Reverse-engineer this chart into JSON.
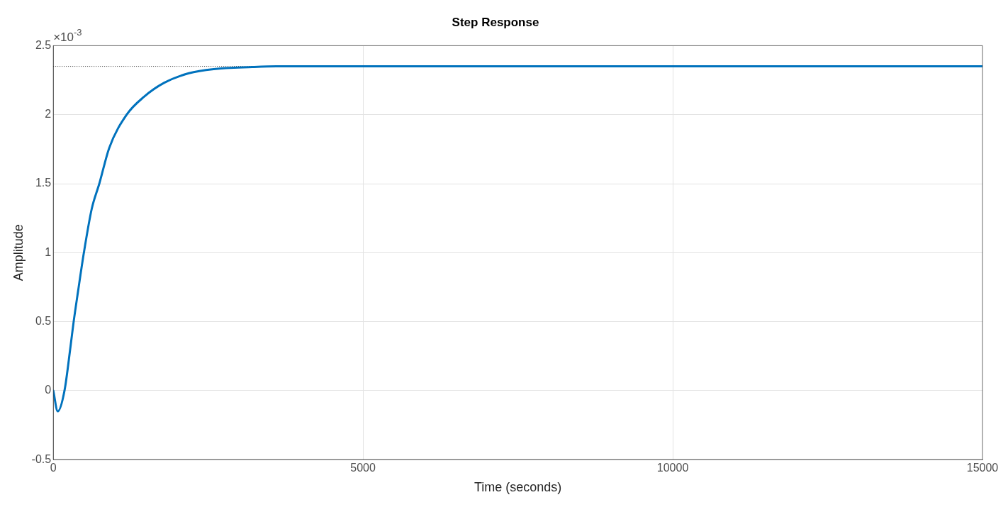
{
  "chart_data": {
    "type": "line",
    "title": "Step Response",
    "xlabel": "Time (seconds)",
    "ylabel": "Amplitude",
    "annotations": [
      "×10$^{-3}$"
    ],
    "series": [
      {
        "color": "#0072bd",
        "x": [
          0,
          72,
          181,
          281,
          329,
          400,
          494,
          622,
          743,
          904,
          1185,
          1466,
          1787,
          2189,
          2590,
          3213,
          3600,
          15000
        ],
        "values": [
          0,
          -0.15,
          0,
          0.33,
          0.5,
          0.72,
          1.0,
          1.32,
          1.5,
          1.76,
          2.0,
          2.13,
          2.23,
          2.3,
          2.33,
          2.345,
          2.35,
          2.35
        ]
      }
    ],
    "ref_lines": [
      {
        "axis": "y",
        "value": 2.35,
        "color": "#333333",
        "line_style": "dotted"
      }
    ],
    "xlim": [
      0,
      15000
    ],
    "xticks": [
      0,
      5000,
      10000,
      15000
    ],
    "ylim": [
      -0.5,
      2.5
    ],
    "yticks": [
      -0.5,
      0,
      0.5,
      1,
      1.5,
      2,
      2.5
    ],
    "grid": true,
    "legend": false,
    "marker": "none",
    "line_style": "solid"
  }
}
